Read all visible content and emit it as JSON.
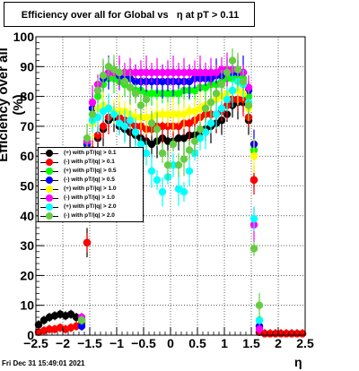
{
  "title": {
    "part1": "Efficiency over all for Global vs",
    "part2": "η at pT > 0.11"
  },
  "datestamp": "Fri Dec 31 15:49:01 2021",
  "chart_data": {
    "type": "scatter",
    "title": "Efficiency over all for Global vs η at pT > 0.11",
    "xlabel": "η",
    "ylabel": "Efficiency over all (%)",
    "xlim": [
      -2.5,
      2.5
    ],
    "ylim": [
      0,
      100
    ],
    "grid": true,
    "legend_position": "middle-left",
    "x_ticks": [
      "−2.5",
      "−2",
      "−1.5",
      "−1",
      "−0.5",
      "0",
      "0.5",
      "1",
      "1.5",
      "2",
      "2.5"
    ],
    "y_ticks": [
      "0",
      "10",
      "20",
      "30",
      "40",
      "50",
      "60",
      "70",
      "80",
      "90",
      "100"
    ],
    "series": [
      {
        "name": "(+) with pT/|q| > 0.1",
        "color": "#000000",
        "x": [
          -2.45,
          -2.35,
          -2.25,
          -2.15,
          -2.05,
          -1.95,
          -1.85,
          -1.75,
          -1.65,
          -1.55,
          -1.45,
          -1.35,
          -1.25,
          -1.15,
          -1.05,
          -0.95,
          -0.85,
          -0.75,
          -0.65,
          -0.55,
          -0.45,
          -0.35,
          -0.25,
          -0.15,
          -0.05,
          0.05,
          0.15,
          0.25,
          0.35,
          0.45,
          0.55,
          0.65,
          0.75,
          0.85,
          0.95,
          1.05,
          1.15,
          1.25,
          1.35,
          1.45,
          1.55,
          1.65,
          1.75,
          1.85,
          1.95,
          2.05,
          2.15,
          2.25,
          2.35,
          2.45
        ],
        "y": [
          3.5,
          5,
          6,
          6.5,
          7,
          6.5,
          7,
          6,
          5,
          31,
          60,
          66,
          69,
          72,
          73,
          70,
          69,
          68,
          67,
          66,
          65,
          64,
          65,
          66,
          65,
          65,
          66,
          66,
          67,
          67,
          68,
          69,
          70,
          71,
          72,
          74,
          77,
          78,
          78,
          72,
          52,
          1,
          0.5,
          0.5,
          0.5,
          0.5,
          0.5,
          0.5,
          0.5,
          0.5
        ]
      },
      {
        "name": "(-) with pT/|q| > 0.1",
        "color": "#ff0000",
        "x": [
          -2.45,
          -2.35,
          -2.25,
          -2.15,
          -2.05,
          -1.95,
          -1.85,
          -1.75,
          -1.65,
          -1.55,
          -1.45,
          -1.35,
          -1.25,
          -1.15,
          -1.05,
          -0.95,
          -0.85,
          -0.75,
          -0.65,
          -0.55,
          -0.45,
          -0.35,
          -0.25,
          -0.15,
          -0.05,
          0.05,
          0.15,
          0.25,
          0.35,
          0.45,
          0.55,
          0.65,
          0.75,
          0.85,
          0.95,
          1.05,
          1.15,
          1.25,
          1.35,
          1.45,
          1.55,
          1.65,
          1.75,
          1.85,
          1.95,
          2.05,
          2.15,
          2.25,
          2.35,
          2.45
        ],
        "y": [
          1,
          1.5,
          2,
          2,
          2.5,
          2,
          2.5,
          3,
          4,
          31,
          62,
          67,
          70,
          73,
          74,
          73,
          72,
          71,
          70,
          70,
          69,
          69,
          70,
          70,
          70,
          70,
          70,
          71,
          71,
          72,
          73,
          74,
          74,
          74,
          75,
          77,
          79,
          79,
          79,
          73,
          52,
          1,
          0.5,
          0.5,
          0.5,
          0.5,
          0.5,
          0.5,
          0.5,
          0.5
        ]
      },
      {
        "name": "(+) with pT/|q| > 0.5",
        "color": "#00ff00",
        "x": [
          -1.65,
          -1.55,
          -1.45,
          -1.35,
          -1.25,
          -1.15,
          -1.05,
          -0.95,
          -0.85,
          -0.75,
          -0.65,
          -0.55,
          -0.45,
          -0.35,
          -0.25,
          -0.15,
          -0.05,
          0.05,
          0.15,
          0.25,
          0.35,
          0.45,
          0.55,
          0.65,
          0.75,
          0.85,
          0.95,
          1.05,
          1.15,
          1.25,
          1.35,
          1.45,
          1.55,
          1.65
        ],
        "y": [
          5,
          63,
          74,
          80,
          84,
          86,
          86,
          85,
          84,
          83,
          82,
          82,
          81,
          81,
          81,
          81,
          81,
          81,
          81,
          82,
          82,
          82,
          83,
          83,
          84,
          84,
          85,
          86,
          86,
          86,
          86,
          80,
          62,
          5
        ]
      },
      {
        "name": "(-) with pT/|q| > 0.5",
        "color": "#0000ff",
        "x": [
          -1.65,
          -1.55,
          -1.45,
          -1.35,
          -1.25,
          -1.15,
          -1.05,
          -0.95,
          -0.85,
          -0.75,
          -0.65,
          -0.55,
          -0.45,
          -0.35,
          -0.25,
          -0.15,
          -0.05,
          0.05,
          0.15,
          0.25,
          0.35,
          0.45,
          0.55,
          0.65,
          0.75,
          0.85,
          0.95,
          1.05,
          1.15,
          1.25,
          1.35,
          1.45,
          1.55,
          1.65
        ],
        "y": [
          3,
          64,
          76,
          82,
          86,
          88,
          88,
          87,
          86,
          86,
          85,
          85,
          85,
          85,
          85,
          85,
          85,
          85,
          85,
          85,
          85,
          86,
          86,
          86,
          86,
          87,
          87,
          88,
          88,
          88,
          88,
          82,
          64,
          3
        ]
      },
      {
        "name": "(+) with pT/|q| > 1.0",
        "color": "#ffff00",
        "x": [
          -1.55,
          -1.45,
          -1.35,
          -1.25,
          -1.15,
          -1.05,
          -0.95,
          -0.85,
          -0.75,
          -0.65,
          -0.55,
          -0.45,
          -0.35,
          -0.25,
          -0.15,
          -0.05,
          0.05,
          0.15,
          0.25,
          0.35,
          0.45,
          0.55,
          0.65,
          0.75,
          0.85,
          0.95,
          1.05,
          1.15,
          1.25,
          1.35,
          1.45,
          1.55
        ],
        "y": [
          62,
          71,
          76,
          77,
          76,
          75,
          75,
          75,
          74,
          73,
          73,
          73,
          73,
          74,
          74,
          74,
          74,
          74,
          74,
          75,
          75,
          76,
          77,
          78,
          79,
          80,
          81,
          82,
          82,
          81,
          76,
          60
        ]
      },
      {
        "name": "(-) with pT/|q| > 1.0",
        "color": "#ff00ff",
        "x": [
          -1.65,
          -1.55,
          -1.45,
          -1.35,
          -1.25,
          -1.15,
          -1.05,
          -0.95,
          -0.85,
          -0.75,
          -0.65,
          -0.55,
          -0.45,
          -0.35,
          -0.25,
          -0.15,
          -0.05,
          0.05,
          0.15,
          0.25,
          0.35,
          0.45,
          0.55,
          0.65,
          0.75,
          0.85,
          0.95,
          1.05,
          1.15,
          1.25,
          1.35,
          1.45,
          1.55,
          1.65
        ],
        "y": [
          6,
          65,
          78,
          84,
          87,
          88,
          88,
          88,
          88,
          88,
          88,
          88,
          88,
          88,
          88,
          88,
          88,
          88,
          88,
          88,
          88,
          88,
          88,
          88,
          88,
          88,
          89,
          89,
          89,
          89,
          88,
          83,
          37,
          2
        ]
      },
      {
        "name": "(+) with pT/|q| > 2.0",
        "color": "#00ffff",
        "x": [
          -1.65,
          -1.55,
          -1.45,
          -1.35,
          -1.25,
          -1.15,
          -1.05,
          -0.95,
          -0.85,
          -0.75,
          -0.65,
          -0.55,
          -0.45,
          -0.35,
          -0.25,
          -0.15,
          -0.05,
          0.05,
          0.15,
          0.25,
          0.35,
          0.45,
          0.55,
          0.65,
          0.75,
          0.85,
          0.95,
          1.05,
          1.15,
          1.25,
          1.35,
          1.45,
          1.55,
          1.65
        ],
        "y": [
          5,
          61,
          72,
          73,
          75,
          76,
          74,
          71,
          70,
          72,
          68,
          64,
          61,
          55,
          52,
          48,
          53,
          57,
          49,
          48,
          55,
          61,
          66,
          68,
          71,
          74,
          76,
          79,
          82,
          85,
          84,
          78,
          39,
          5
        ]
      },
      {
        "name": "(-) with pT/|q| > 2.0",
        "color": "#66cc44",
        "x": [
          -1.65,
          -1.55,
          -1.45,
          -1.35,
          -1.25,
          -1.15,
          -1.05,
          -0.95,
          -0.85,
          -0.75,
          -0.65,
          -0.55,
          -0.45,
          -0.35,
          -0.25,
          -0.15,
          -0.05,
          0.05,
          0.15,
          0.25,
          0.35,
          0.45,
          0.55,
          0.65,
          0.75,
          0.85,
          0.95,
          1.05,
          1.15,
          1.25,
          1.35,
          1.45,
          1.55,
          1.65
        ],
        "y": [
          5,
          66,
          74,
          82,
          87,
          90,
          89,
          88,
          85,
          83,
          81,
          77,
          79,
          71,
          69,
          61,
          57,
          64,
          57,
          59,
          62,
          65,
          69,
          76,
          78,
          81,
          84,
          88,
          92,
          89,
          85,
          77,
          29,
          10
        ]
      }
    ]
  }
}
